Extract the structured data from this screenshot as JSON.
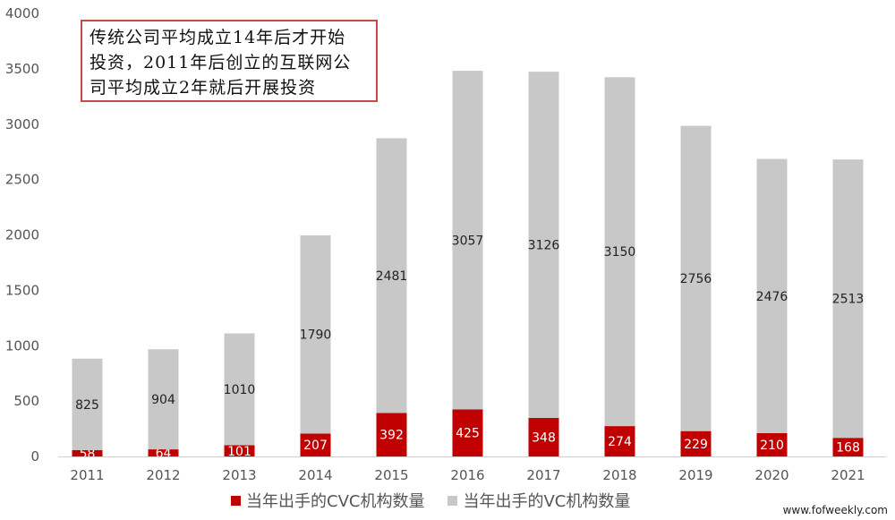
{
  "chart_data": {
    "type": "bar",
    "stacked": true,
    "categories": [
      "2011",
      "2012",
      "2013",
      "2014",
      "2015",
      "2016",
      "2017",
      "2018",
      "2019",
      "2020",
      "2021"
    ],
    "series": [
      {
        "name": "当年出手的CVC机构数量",
        "color": "#c00000",
        "label_color": "#ffffff",
        "values": [
          58,
          64,
          101,
          207,
          392,
          425,
          348,
          274,
          229,
          210,
          168
        ]
      },
      {
        "name": "当年出手的VC机构数量",
        "color": "#c8c8c8",
        "label_color": "#222222",
        "values": [
          825,
          904,
          1010,
          1790,
          2481,
          3057,
          3126,
          3150,
          2756,
          2476,
          2513
        ]
      }
    ],
    "ylim": [
      0,
      4000
    ],
    "yticks": [
      "0",
      "500",
      "1000",
      "1500",
      "2000",
      "2500",
      "3000",
      "3500",
      "4000"
    ],
    "grid": false,
    "legend_position": "bottom",
    "annotation": {
      "lines": [
        "传统公司平均成立14年后才开始",
        "投资，2011年后创立的互联网公",
        "司平均成立2年就后开展投资"
      ],
      "border_color": "#c94a4a"
    }
  },
  "watermark": "www.fofweekly.com"
}
